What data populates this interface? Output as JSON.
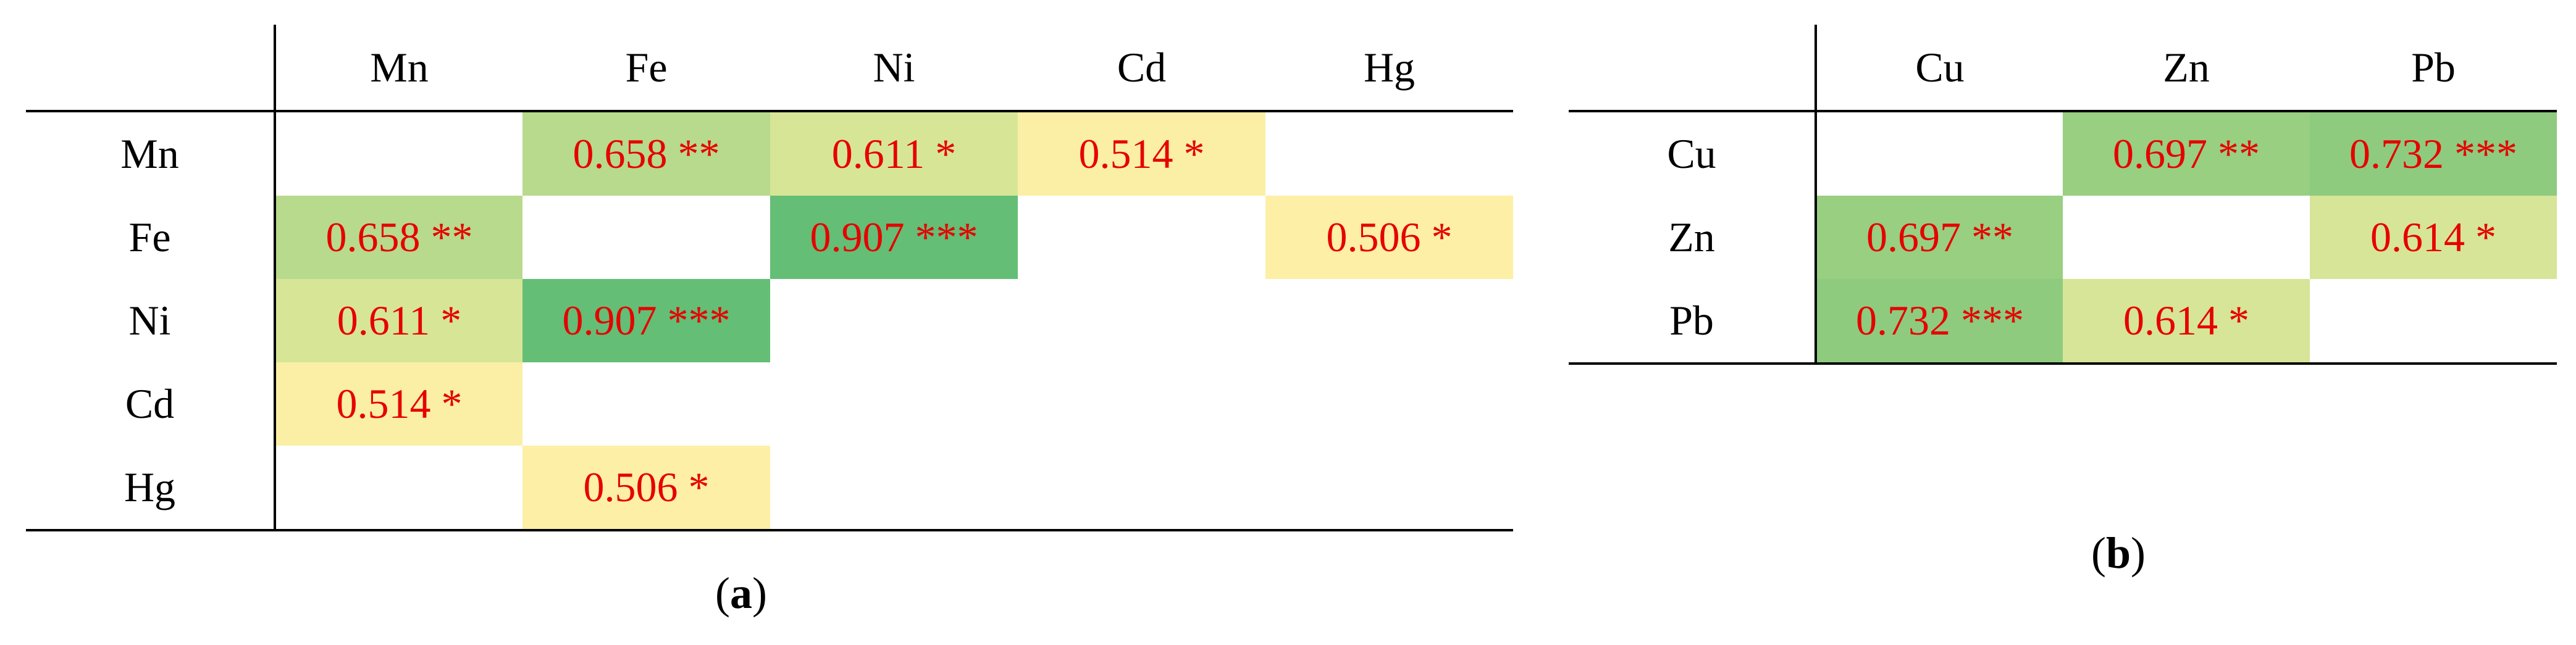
{
  "colors": {
    "value_text": "#e60000",
    "scale_low": "#fff0a6",
    "scale_mid": "#c8df96",
    "scale_high": "#66bf77",
    "border": "#000000"
  },
  "chart_data": [
    {
      "type": "heatmap",
      "panel": "a",
      "caption_letter": "a",
      "labels": [
        "Mn",
        "Fe",
        "Ni",
        "Cd",
        "Hg"
      ],
      "matrix": [
        [
          null,
          0.658,
          0.611,
          0.514,
          null
        ],
        [
          0.658,
          null,
          0.907,
          null,
          0.506
        ],
        [
          0.611,
          0.907,
          null,
          null,
          null
        ],
        [
          0.514,
          null,
          null,
          null,
          null
        ],
        [
          null,
          0.506,
          null,
          null,
          null
        ]
      ],
      "cell_text": [
        [
          "",
          "0.658 **",
          "0.611 *",
          "0.514 *",
          ""
        ],
        [
          "0.658 **",
          "",
          "0.907 ***",
          "",
          "0.506 *"
        ],
        [
          "0.611 *",
          "0.907 ***",
          "",
          "",
          ""
        ],
        [
          "0.514 *",
          "",
          "",
          "",
          ""
        ],
        [
          "",
          "0.506 *",
          "",
          "",
          ""
        ]
      ]
    },
    {
      "type": "heatmap",
      "panel": "b",
      "caption_letter": "b",
      "labels": [
        "Cu",
        "Zn",
        "Pb"
      ],
      "matrix": [
        [
          null,
          0.697,
          0.732
        ],
        [
          0.697,
          null,
          0.614
        ],
        [
          0.732,
          0.614,
          null
        ]
      ],
      "cell_text": [
        [
          "",
          "0.697 **",
          "0.732 ***"
        ],
        [
          "0.697 **",
          "",
          "0.614 *"
        ],
        [
          "0.732 ***",
          "0.614 *",
          ""
        ]
      ]
    }
  ]
}
